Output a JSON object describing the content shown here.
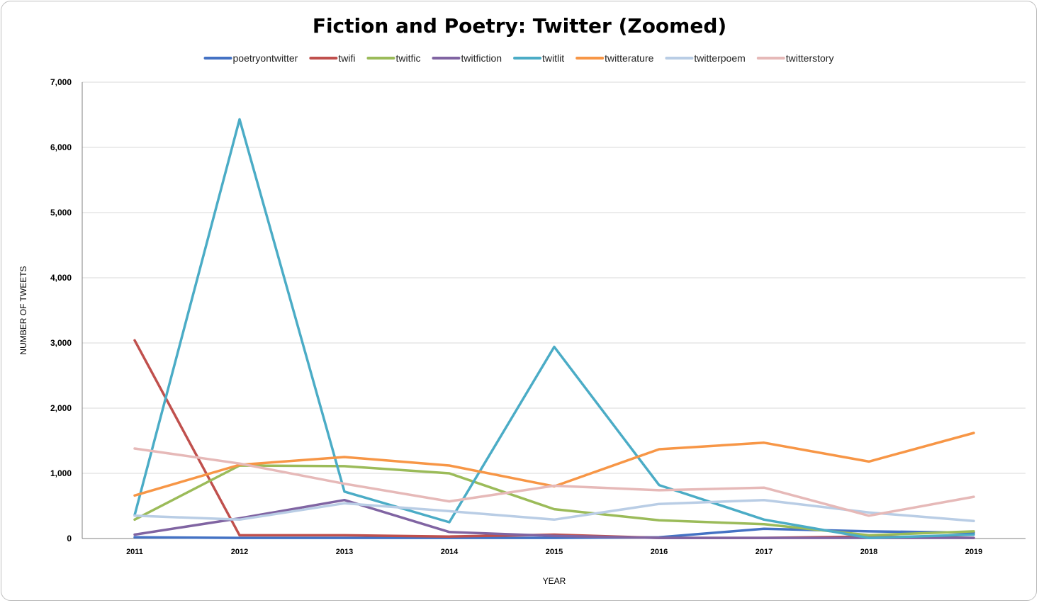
{
  "chart_data": {
    "type": "line",
    "title": "Fiction and Poetry: Twitter (Zoomed)",
    "xlabel": "YEAR",
    "ylabel": "NUMBER OF TWEETS",
    "x": [
      "2011",
      "2012",
      "2013",
      "2014",
      "2015",
      "2016",
      "2017",
      "2018",
      "2019"
    ],
    "y_ticks": [
      "0",
      "1,000",
      "2,000",
      "3,000",
      "4,000",
      "5,000",
      "6,000",
      "7,000"
    ],
    "ylim": [
      0,
      7000
    ],
    "grid": true,
    "legend_position": "top",
    "series": [
      {
        "name": "poetryontwitter",
        "color": "#4472c4",
        "values": [
          20,
          10,
          10,
          10,
          10,
          20,
          150,
          110,
          90
        ]
      },
      {
        "name": "twifi",
        "color": "#c0504d",
        "values": [
          3040,
          50,
          50,
          30,
          60,
          10,
          10,
          30,
          10
        ]
      },
      {
        "name": "twitfic",
        "color": "#9bbb59",
        "values": [
          290,
          1120,
          1110,
          1000,
          450,
          280,
          220,
          50,
          110
        ]
      },
      {
        "name": "twitfiction",
        "color": "#8064a2",
        "values": [
          60,
          310,
          590,
          100,
          40,
          10,
          10,
          10,
          10
        ]
      },
      {
        "name": "twitlit",
        "color": "#4bacc6",
        "values": [
          360,
          6430,
          720,
          250,
          2940,
          820,
          290,
          10,
          60
        ]
      },
      {
        "name": "twitterature",
        "color": "#f79646",
        "values": [
          660,
          1130,
          1250,
          1120,
          800,
          1370,
          1470,
          1180,
          1620
        ]
      },
      {
        "name": "twitterpoem",
        "color": "#b9cde5",
        "values": [
          350,
          290,
          540,
          420,
          290,
          530,
          590,
          400,
          270
        ]
      },
      {
        "name": "twitterstory",
        "color": "#e6b9b8",
        "values": [
          1380,
          1150,
          840,
          570,
          810,
          740,
          780,
          350,
          640
        ]
      }
    ]
  }
}
